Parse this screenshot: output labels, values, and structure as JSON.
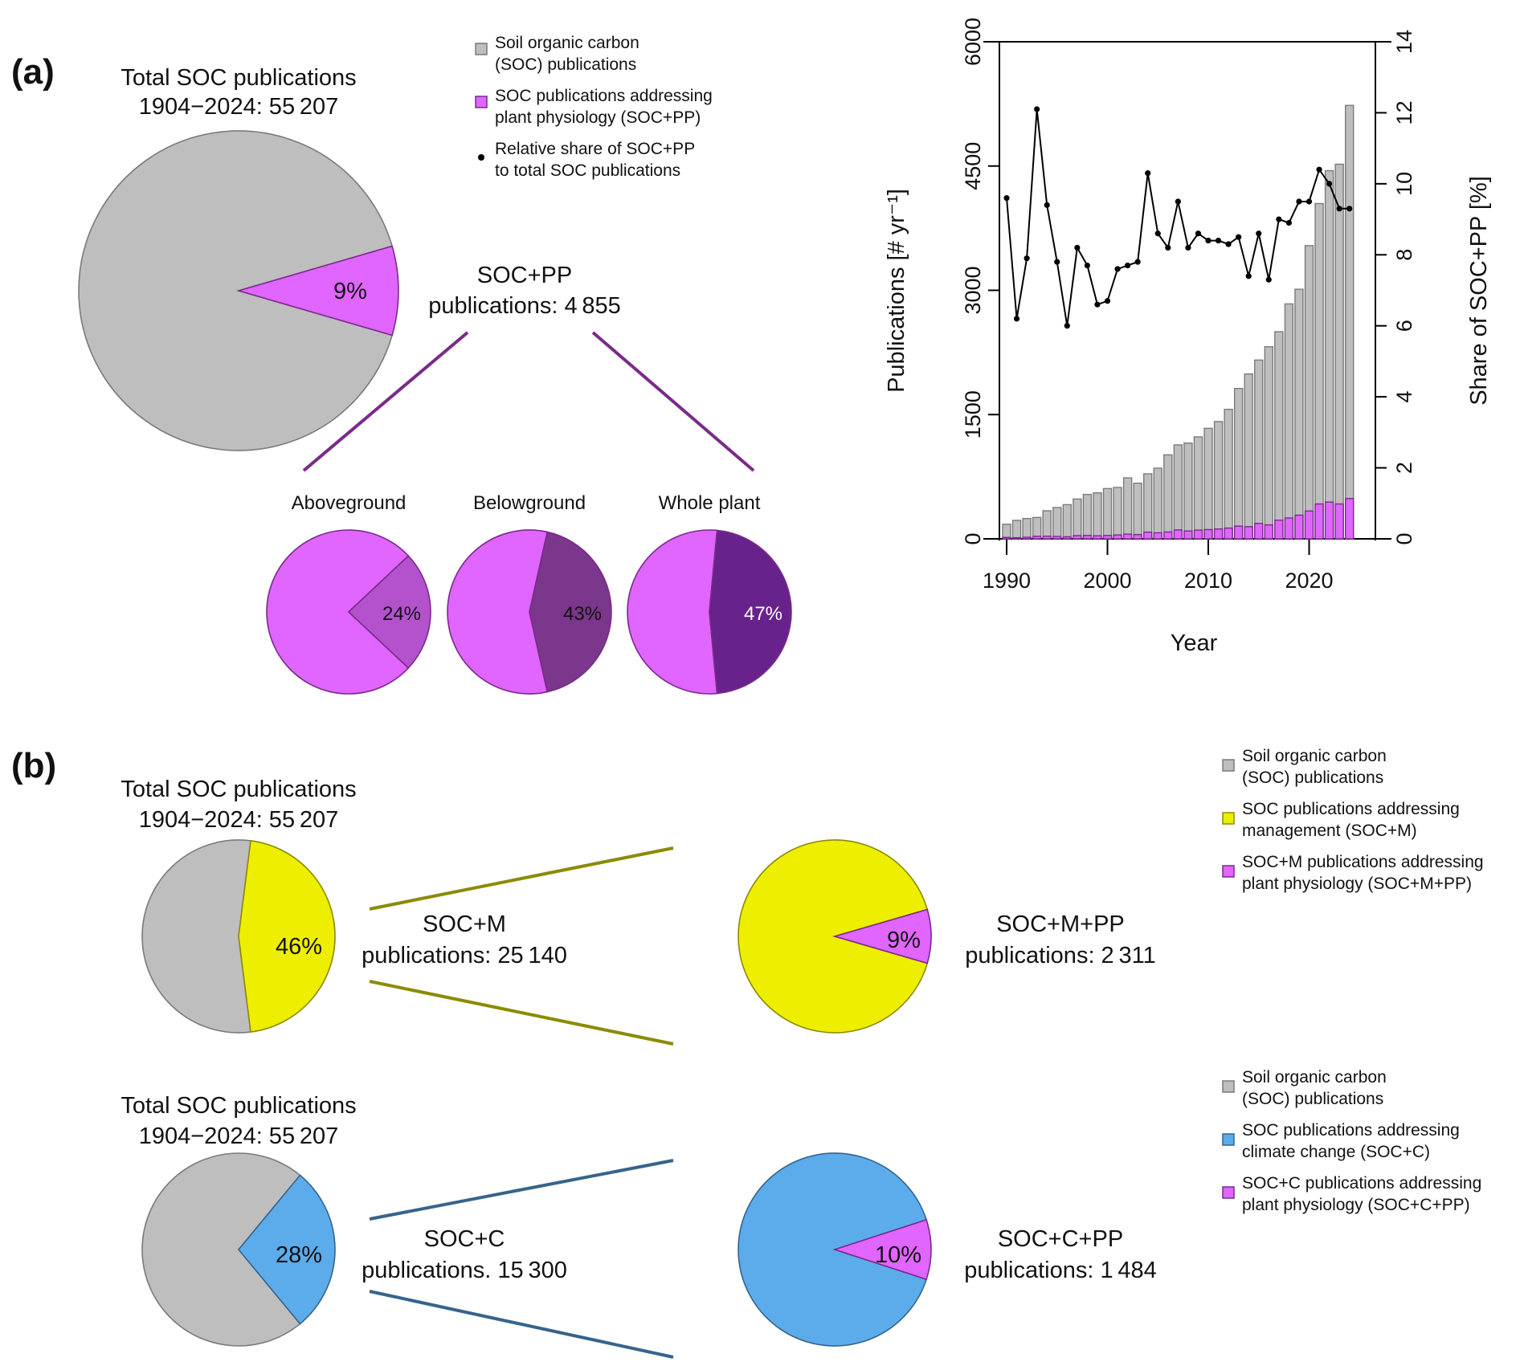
{
  "colors": {
    "soc_gray": "#bebebe",
    "soc_gray_border": "#7a7a7a",
    "pp_magenta": "#e066ff",
    "pp_magenta_border": "#7a2a8a",
    "aboveground_purple": "#b452cd",
    "belowground_purple": "#7a378b",
    "wholeplant_purple": "#68228b",
    "management_yellow": "#eeee00",
    "management_line": "#8b8b00",
    "climate_blue": "#5caceb",
    "climate_line": "#36648b",
    "connector_purple": "#7a2a8a"
  },
  "panel_a": {
    "label": "(a)",
    "total_pie": {
      "title_line1": "Total SOC publications",
      "title_line2": "1904−2024: 55 207",
      "slice_label": "9%",
      "share_percent": 9
    },
    "socpp_text": {
      "line1": "SOC+PP",
      "line2": "publications: 4 855"
    },
    "legend": [
      {
        "icon": "gray-square",
        "line1": "Soil organic carbon",
        "line2": "(SOC) publications"
      },
      {
        "icon": "magenta-square",
        "line1": "SOC publications addressing",
        "line2": "plant physiology (SOC+PP)"
      },
      {
        "icon": "black-dot",
        "line1": "Relative share of SOC+PP",
        "line2": "to total SOC publications"
      }
    ],
    "sub_pies": [
      {
        "title": "Aboveground",
        "slice_label": "24%",
        "share_percent": 24
      },
      {
        "title": "Belowground",
        "slice_label": "43%",
        "share_percent": 43
      },
      {
        "title": "Whole plant",
        "slice_label": "47%",
        "share_percent": 47
      }
    ]
  },
  "panel_b": {
    "label": "(b)",
    "rows": [
      {
        "total_title_line1": "Total SOC publications",
        "total_title_line2": "1904−2024: 55 207",
        "first_slice_label": "46%",
        "first_share_percent": 46,
        "middle_line1": "SOC+M",
        "middle_line2": "publications: 25 140",
        "second_slice_label": "9%",
        "second_share_percent": 9,
        "right_line1": "SOC+M+PP",
        "right_line2": "publications: 2 311",
        "legend": [
          {
            "icon": "gray-square",
            "line1": "Soil organic carbon",
            "line2": "(SOC) publications"
          },
          {
            "icon": "yellow-square",
            "line1": "SOC publications addressing",
            "line2": "management (SOC+M)"
          },
          {
            "icon": "magenta-square",
            "line1": "SOC+M publications addressing",
            "line2": "plant physiology (SOC+M+PP)"
          }
        ]
      },
      {
        "total_title_line1": "Total SOC publications",
        "total_title_line2": "1904−2024: 55 207",
        "first_slice_label": "28%",
        "first_share_percent": 28,
        "middle_line1": "SOC+C",
        "middle_line2": "publications. 15 300",
        "second_slice_label": "10%",
        "second_share_percent": 10,
        "right_line1": "SOC+C+PP",
        "right_line2": "publications: 1 484",
        "legend": [
          {
            "icon": "gray-square",
            "line1": "Soil organic carbon",
            "line2": "(SOC) publications"
          },
          {
            "icon": "blue-square",
            "line1": "SOC publications addressing",
            "line2": "climate change (SOC+C)"
          },
          {
            "icon": "magenta-square",
            "line1": "SOC+C publications addressing",
            "line2": "plant physiology (SOC+C+PP)"
          }
        ]
      }
    ]
  },
  "chart_data": [
    {
      "type": "bar",
      "title": "",
      "xlabel": "Year",
      "ylabel": "Publications [# yr⁻¹]",
      "y2label": "Share of SOC+PP [%]",
      "ylim": [
        0,
        6000
      ],
      "y2lim": [
        0,
        14
      ],
      "yticks": [
        "0",
        "1500",
        "3000",
        "4500",
        "6000"
      ],
      "y2ticks": [
        "0",
        "2",
        "4",
        "6",
        "8",
        "10",
        "12",
        "14"
      ],
      "xticks": [
        "1990",
        "2000",
        "2010",
        "2020"
      ],
      "grid": false,
      "categories": [
        1990,
        1991,
        1992,
        1993,
        1994,
        1995,
        1996,
        1997,
        1998,
        1999,
        2000,
        2001,
        2002,
        2003,
        2004,
        2005,
        2006,
        2007,
        2008,
        2009,
        2010,
        2011,
        2012,
        2013,
        2014,
        2015,
        2016,
        2017,
        2018,
        2019,
        2020,
        2021,
        2022,
        2023,
        2024
      ],
      "series": [
        {
          "name": "SOC publications",
          "kind": "bar",
          "axis": "left",
          "values": [
            177,
            223,
            245,
            258,
            339,
            378,
            413,
            481,
            536,
            555,
            607,
            620,
            736,
            672,
            785,
            853,
            1014,
            1134,
            1156,
            1231,
            1334,
            1415,
            1563,
            1815,
            1990,
            2158,
            2319,
            2500,
            2836,
            3013,
            3539,
            4047,
            4444,
            4522,
            5232
          ]
        },
        {
          "name": "SOC+PP publications",
          "kind": "bar",
          "axis": "left",
          "values": [
            17,
            14,
            19,
            31,
            32,
            29,
            25,
            39,
            41,
            37,
            41,
            47,
            57,
            52,
            81,
            73,
            83,
            108,
            95,
            106,
            112,
            119,
            130,
            154,
            147,
            186,
            169,
            225,
            252,
            286,
            336,
            421,
            444,
            421,
            487
          ]
        },
        {
          "name": "Relative share of SOC+PP",
          "kind": "line",
          "axis": "right",
          "values": [
            9.6,
            6.2,
            7.9,
            12.1,
            9.4,
            7.8,
            6.0,
            8.2,
            7.7,
            6.6,
            6.7,
            7.6,
            7.7,
            7.8,
            10.3,
            8.6,
            8.2,
            9.5,
            8.2,
            8.6,
            8.4,
            8.4,
            8.3,
            8.5,
            7.4,
            8.6,
            7.3,
            9.0,
            8.9,
            9.5,
            9.5,
            10.4,
            10.0,
            9.3,
            9.3
          ]
        }
      ],
      "legend_position": "top-left (outside, panel a)"
    },
    {
      "type": "pie",
      "title": "Total SOC publications 1904−2024: 55 207",
      "slices": [
        {
          "name": "SOC (other)",
          "value": 91
        },
        {
          "name": "SOC+PP",
          "value": 9
        }
      ]
    },
    {
      "type": "pie",
      "title": "Aboveground",
      "slices": [
        {
          "name": "other SOC+PP",
          "value": 76
        },
        {
          "name": "Aboveground",
          "value": 24
        }
      ]
    },
    {
      "type": "pie",
      "title": "Belowground",
      "slices": [
        {
          "name": "other SOC+PP",
          "value": 57
        },
        {
          "name": "Belowground",
          "value": 43
        }
      ]
    },
    {
      "type": "pie",
      "title": "Whole plant",
      "slices": [
        {
          "name": "other SOC+PP",
          "value": 53
        },
        {
          "name": "Whole plant",
          "value": 47
        }
      ]
    },
    {
      "type": "pie",
      "title": "Total SOC (management)",
      "slices": [
        {
          "name": "SOC (other)",
          "value": 54
        },
        {
          "name": "SOC+M",
          "value": 46
        }
      ]
    },
    {
      "type": "pie",
      "title": "SOC+M",
      "slices": [
        {
          "name": "SOC+M (other)",
          "value": 91
        },
        {
          "name": "SOC+M+PP",
          "value": 9
        }
      ]
    },
    {
      "type": "pie",
      "title": "Total SOC (climate)",
      "slices": [
        {
          "name": "SOC (other)",
          "value": 72
        },
        {
          "name": "SOC+C",
          "value": 28
        }
      ]
    },
    {
      "type": "pie",
      "title": "SOC+C",
      "slices": [
        {
          "name": "SOC+C (other)",
          "value": 90
        },
        {
          "name": "SOC+C+PP",
          "value": 10
        }
      ]
    }
  ]
}
